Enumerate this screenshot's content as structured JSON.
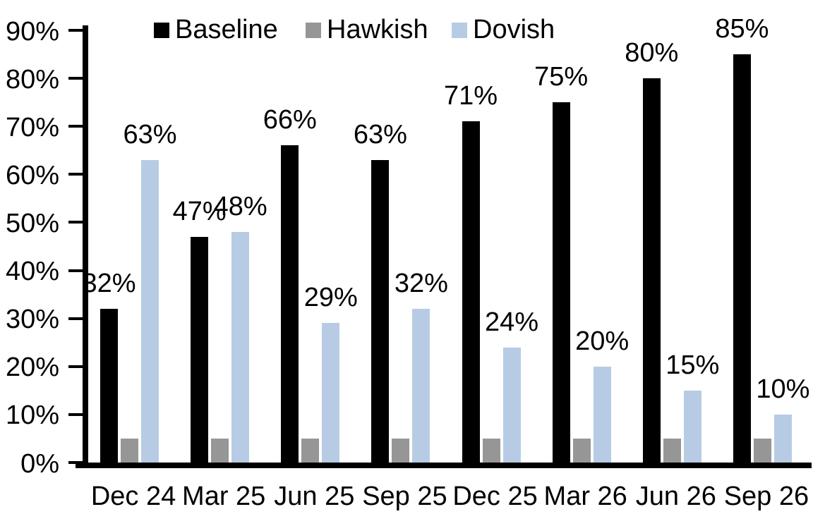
{
  "chart_data": {
    "type": "bar",
    "title": "",
    "categories": [
      "Dec 24",
      "Mar 25",
      "Jun 25",
      "Sep 25",
      "Dec 25",
      "Mar 26",
      "Jun 26",
      "Sep 26"
    ],
    "series": [
      {
        "name": "Baseline",
        "color": "#000000",
        "values": [
          32,
          47,
          66,
          63,
          71,
          75,
          80,
          85
        ],
        "labels": [
          "32%",
          "47%",
          "66%",
          "63%",
          "71%",
          "75%",
          "80%",
          "85%"
        ]
      },
      {
        "name": "Hawkish",
        "color": "#969696",
        "values": [
          5,
          5,
          5,
          5,
          5,
          5,
          5,
          5
        ],
        "labels": [
          "",
          "",
          "",
          "",
          "",
          "",
          "",
          ""
        ]
      },
      {
        "name": "Dovish",
        "color": "#B7CCE4",
        "values": [
          63,
          48,
          29,
          32,
          24,
          20,
          15,
          10
        ],
        "labels": [
          "63%",
          "48%",
          "29%",
          "32%",
          "24%",
          "20%",
          "15%",
          "10%"
        ]
      }
    ],
    "y_axis": {
      "min": 0,
      "max": 90,
      "step": 10,
      "tick_labels": [
        "0%",
        "10%",
        "20%",
        "30%",
        "40%",
        "50%",
        "60%",
        "70%",
        "80%",
        "90%"
      ]
    },
    "legend": {
      "position": "top",
      "items": [
        "Baseline",
        "Hawkish",
        "Dovish"
      ]
    },
    "grid": false,
    "axis_color": "#000000",
    "background_color": "#ffffff"
  }
}
